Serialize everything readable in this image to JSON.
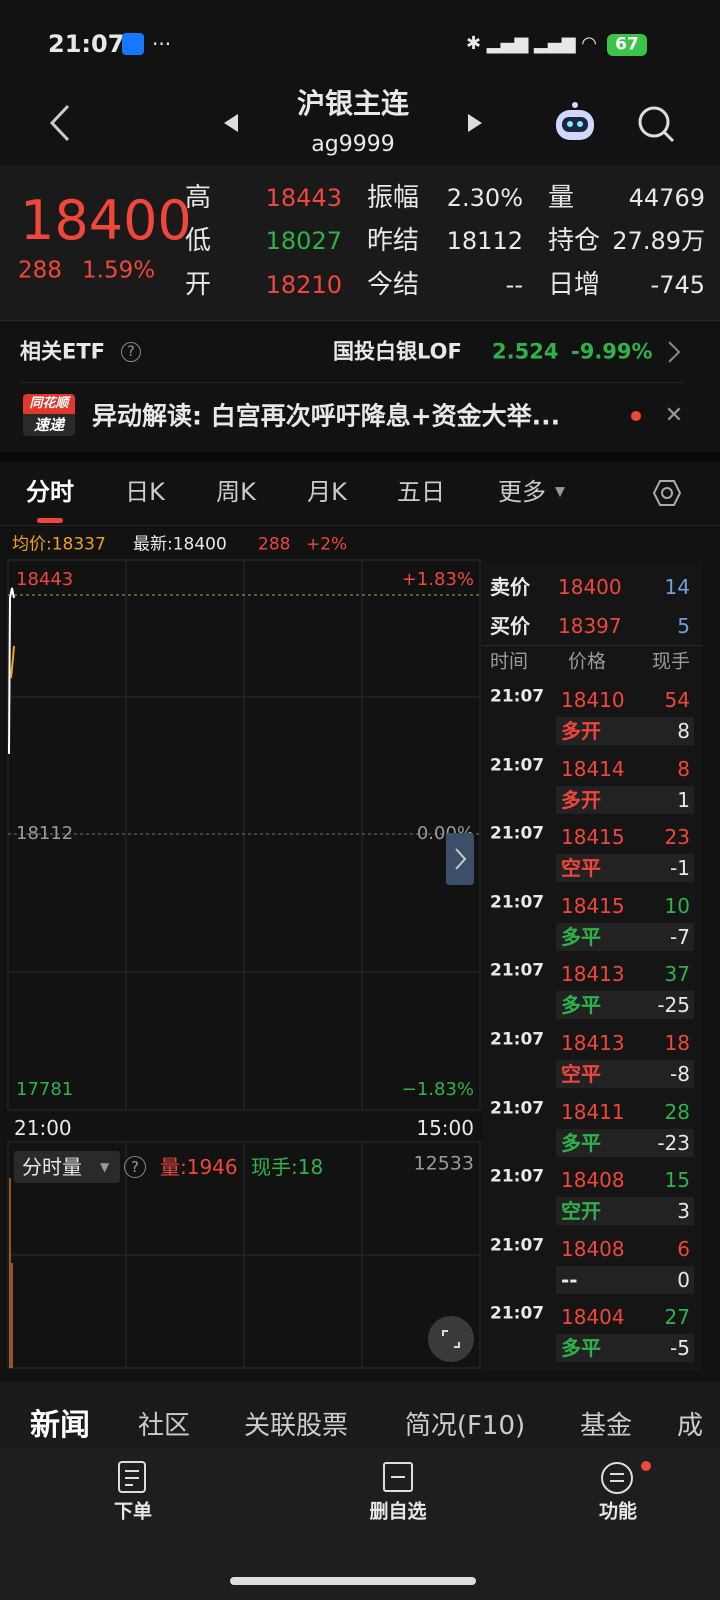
{
  "status": {
    "time": "21:07",
    "battery": "67"
  },
  "header": {
    "title": "沪银主连",
    "code": "ag9999"
  },
  "quote": {
    "price": "18400",
    "change": "288",
    "pct": "1.59%",
    "stats": [
      [
        {
          "label": "高",
          "value": "18443"
        },
        {
          "label": "振幅",
          "value": "2.30%"
        },
        {
          "label": "量",
          "value": "44769"
        }
      ],
      [
        {
          "label": "低",
          "value": "18027"
        },
        {
          "label": "昨结",
          "value": "18112"
        },
        {
          "label": "持仓",
          "value": "27.89万"
        }
      ],
      [
        {
          "label": "开",
          "value": "18210"
        },
        {
          "label": "今结",
          "value": "--"
        },
        {
          "label": "日增",
          "value": "-745"
        }
      ]
    ]
  },
  "etf": {
    "label": "相关ETF",
    "name": "国投白银LOF",
    "price": "2.524",
    "pct": "-9.99%"
  },
  "news": {
    "badge_top": "同花顺",
    "badge_bottom": "速递",
    "text": "异动解读: 白宫再次呼吁降息+资金大举..."
  },
  "tabs": [
    "分时",
    "日K",
    "周K",
    "月K",
    "五日",
    "更多"
  ],
  "chart": {
    "avg": "均价:18337",
    "latest": "最新:18400",
    "change": "288",
    "pct": "+2%",
    "high": "18443",
    "high_pct": "+1.83%",
    "mid": "18112",
    "mid_pct": "0.00%",
    "low": "17781",
    "low_pct": "−1.83%",
    "start": "21:00",
    "end": "15:00"
  },
  "volume": {
    "selector": "分时量",
    "vol": "量:1946",
    "hand": "现手:18",
    "max": "12533"
  },
  "book": {
    "ask_label": "卖价",
    "ask": "18400",
    "ask_vol": "14",
    "bid_label": "买价",
    "bid": "18397",
    "bid_vol": "5",
    "columns": [
      "时间",
      "价格",
      "现手"
    ],
    "trades": [
      {
        "time": "21:07",
        "price": "18410",
        "vol": "54",
        "vol_color": "#f0463c",
        "type": "多开",
        "type_color": "#f0463c",
        "delta": "8"
      },
      {
        "time": "21:07",
        "price": "18414",
        "vol": "8",
        "vol_color": "#f0463c",
        "type": "多开",
        "type_color": "#f0463c",
        "delta": "1"
      },
      {
        "time": "21:07",
        "price": "18415",
        "vol": "23",
        "vol_color": "#f0463c",
        "type": "空平",
        "type_color": "#f0463c",
        "delta": "-1"
      },
      {
        "time": "21:07",
        "price": "18415",
        "vol": "10",
        "vol_color": "#2fb24a",
        "type": "多平",
        "type_color": "#2fb24a",
        "delta": "-7"
      },
      {
        "time": "21:07",
        "price": "18413",
        "vol": "37",
        "vol_color": "#2fb24a",
        "type": "多平",
        "type_color": "#2fb24a",
        "delta": "-25"
      },
      {
        "time": "21:07",
        "price": "18413",
        "vol": "18",
        "vol_color": "#f0463c",
        "type": "空平",
        "type_color": "#f0463c",
        "delta": "-8"
      },
      {
        "time": "21:07",
        "price": "18411",
        "vol": "28",
        "vol_color": "#2fb24a",
        "type": "多平",
        "type_color": "#2fb24a",
        "delta": "-23"
      },
      {
        "time": "21:07",
        "price": "18408",
        "vol": "15",
        "vol_color": "#2fb24a",
        "type": "空开",
        "type_color": "#2fb24a",
        "delta": "3"
      },
      {
        "time": "21:07",
        "price": "18408",
        "vol": "6",
        "vol_color": "#f0463c",
        "type": "--",
        "type_color": "#e8e8e8",
        "delta": "0"
      },
      {
        "time": "21:07",
        "price": "18404",
        "vol": "27",
        "vol_color": "#2fb24a",
        "type": "多平",
        "type_color": "#2fb24a",
        "delta": "-5"
      }
    ]
  },
  "bottom_tabs": [
    "新闻",
    "社区",
    "关联股票",
    "简况(F10)",
    "基金",
    "成"
  ],
  "nav": [
    "下单",
    "删自选",
    "功能"
  ]
}
